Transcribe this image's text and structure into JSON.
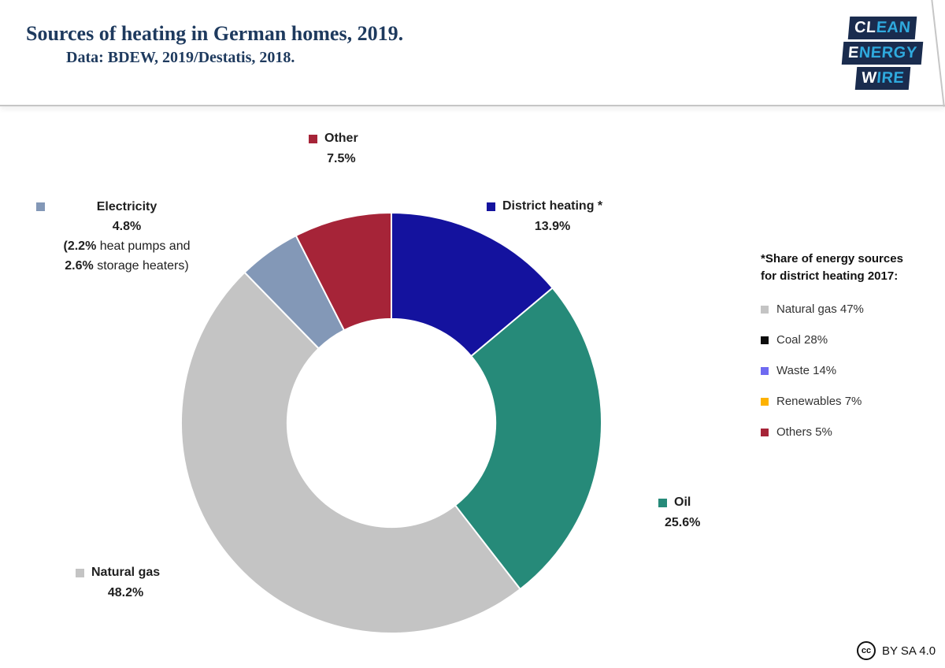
{
  "header": {
    "title": "Sources of heating in German homes, 2019.",
    "subtitle": "Data: BDEW, 2019/Destatis, 2018.",
    "title_color": "#1e3a5e"
  },
  "logo": {
    "lines": [
      {
        "white": "CL",
        "cyan": "EAN"
      },
      {
        "white": "E",
        "cyan": "NERGY"
      },
      {
        "white": "W",
        "cyan": "IRE"
      }
    ],
    "box_color": "#1a2c4e",
    "cyan_color": "#2faade"
  },
  "chart_data": {
    "type": "pie",
    "subtype": "donut",
    "title": "Sources of heating in German homes, 2019",
    "start_angle_deg": 0,
    "direction": "clockwise",
    "inner_radius_ratio": 0.495,
    "segments": [
      {
        "id": "district-heating",
        "label": "District heating *",
        "value": 13.9,
        "display": "13.9%",
        "color": "#14129e"
      },
      {
        "id": "oil",
        "label": "Oil",
        "value": 25.6,
        "display": "25.6%",
        "color": "#268a79"
      },
      {
        "id": "natural-gas",
        "label": "Natural gas",
        "value": 48.2,
        "display": "48.2%",
        "color": "#c4c4c4"
      },
      {
        "id": "electricity",
        "label": "Electricity",
        "value": 4.8,
        "display": "4.8%",
        "color": "#8398b7"
      },
      {
        "id": "other",
        "label": "Other",
        "value": 7.5,
        "display": "7.5%",
        "color": "#a62438"
      }
    ]
  },
  "electricity_note": {
    "line1_bold": "(2.2%",
    "line1_rest": " heat pumps and",
    "line2_bold": "2.6%",
    "line2_rest": " storage heaters)"
  },
  "side_legend": {
    "heading_line1": "*Share of energy sources",
    "heading_line2": "for district heating 2017:",
    "items": [
      {
        "label": "Natural gas",
        "value": 47,
        "display": "Natural gas 47%",
        "color": "#c4c4c4"
      },
      {
        "label": "Coal",
        "value": 28,
        "display": "Coal 28%",
        "color": "#0d0d0d"
      },
      {
        "label": "Waste",
        "value": 14,
        "display": "Waste 14%",
        "color": "#6f6af1"
      },
      {
        "label": "Renewables",
        "value": 7,
        "display": "Renewables 7%",
        "color": "#fdb200"
      },
      {
        "label": "Others",
        "value": 5,
        "display": "Others 5%",
        "color": "#a62438"
      }
    ]
  },
  "footer": {
    "cc_label": "cc",
    "license": "BY SA 4.0"
  }
}
